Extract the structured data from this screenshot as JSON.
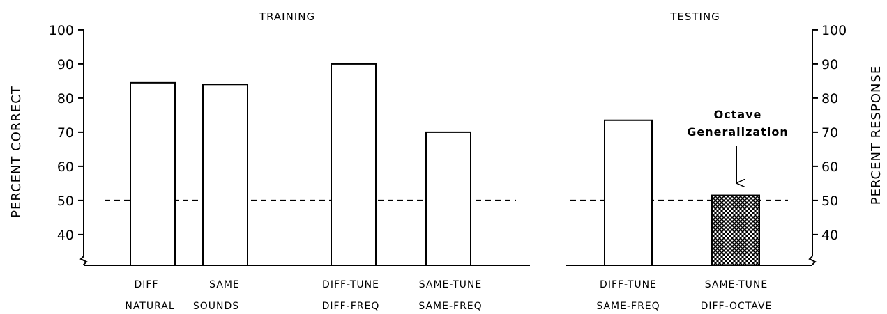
{
  "chart_data": {
    "type": "bar",
    "ylabel_left": "PERCENT CORRECT",
    "ylabel_right": "PERCENT RESPONSE",
    "y_ticks": [
      40,
      50,
      60,
      70,
      80,
      90,
      100
    ],
    "y_tick_labels": [
      "40",
      "50",
      "60",
      "70",
      "80",
      "90",
      "100"
    ],
    "ylim": [
      31,
      100
    ],
    "y_axis_break": true,
    "chance_line": 50,
    "grid": false,
    "panels": [
      {
        "title": "TRAINING",
        "categories": [
          "DIFF",
          "SAME",
          "DIFF-TUNE",
          "SAME-TUNE"
        ],
        "values": [
          84.5,
          84,
          90,
          70
        ],
        "fill": [
          "open",
          "open",
          "open",
          "open"
        ],
        "category_lines": [
          [
            "DIFF"
          ],
          [
            "SAME"
          ],
          [
            "DIFF-TUNE",
            "DIFF-FREQ"
          ],
          [
            "SAME-TUNE",
            "SAME-FREQ"
          ]
        ],
        "group_labels": [
          "NATURAL",
          "SOUNDS"
        ]
      },
      {
        "title": "TESTING",
        "categories": [
          "DIFF-TUNE",
          "SAME-TUNE"
        ],
        "values": [
          73.5,
          51.5
        ],
        "fill": [
          "open",
          "crosshatch"
        ],
        "category_lines": [
          [
            "DIFF-TUNE",
            "SAME-FREQ"
          ],
          [
            "SAME-TUNE",
            "DIFF-OCTAVE"
          ]
        ]
      }
    ],
    "annotation": {
      "lines": [
        "Octave",
        "Generalization"
      ],
      "points_to": "SAME-TUNE DIFF-OCTAVE"
    }
  }
}
